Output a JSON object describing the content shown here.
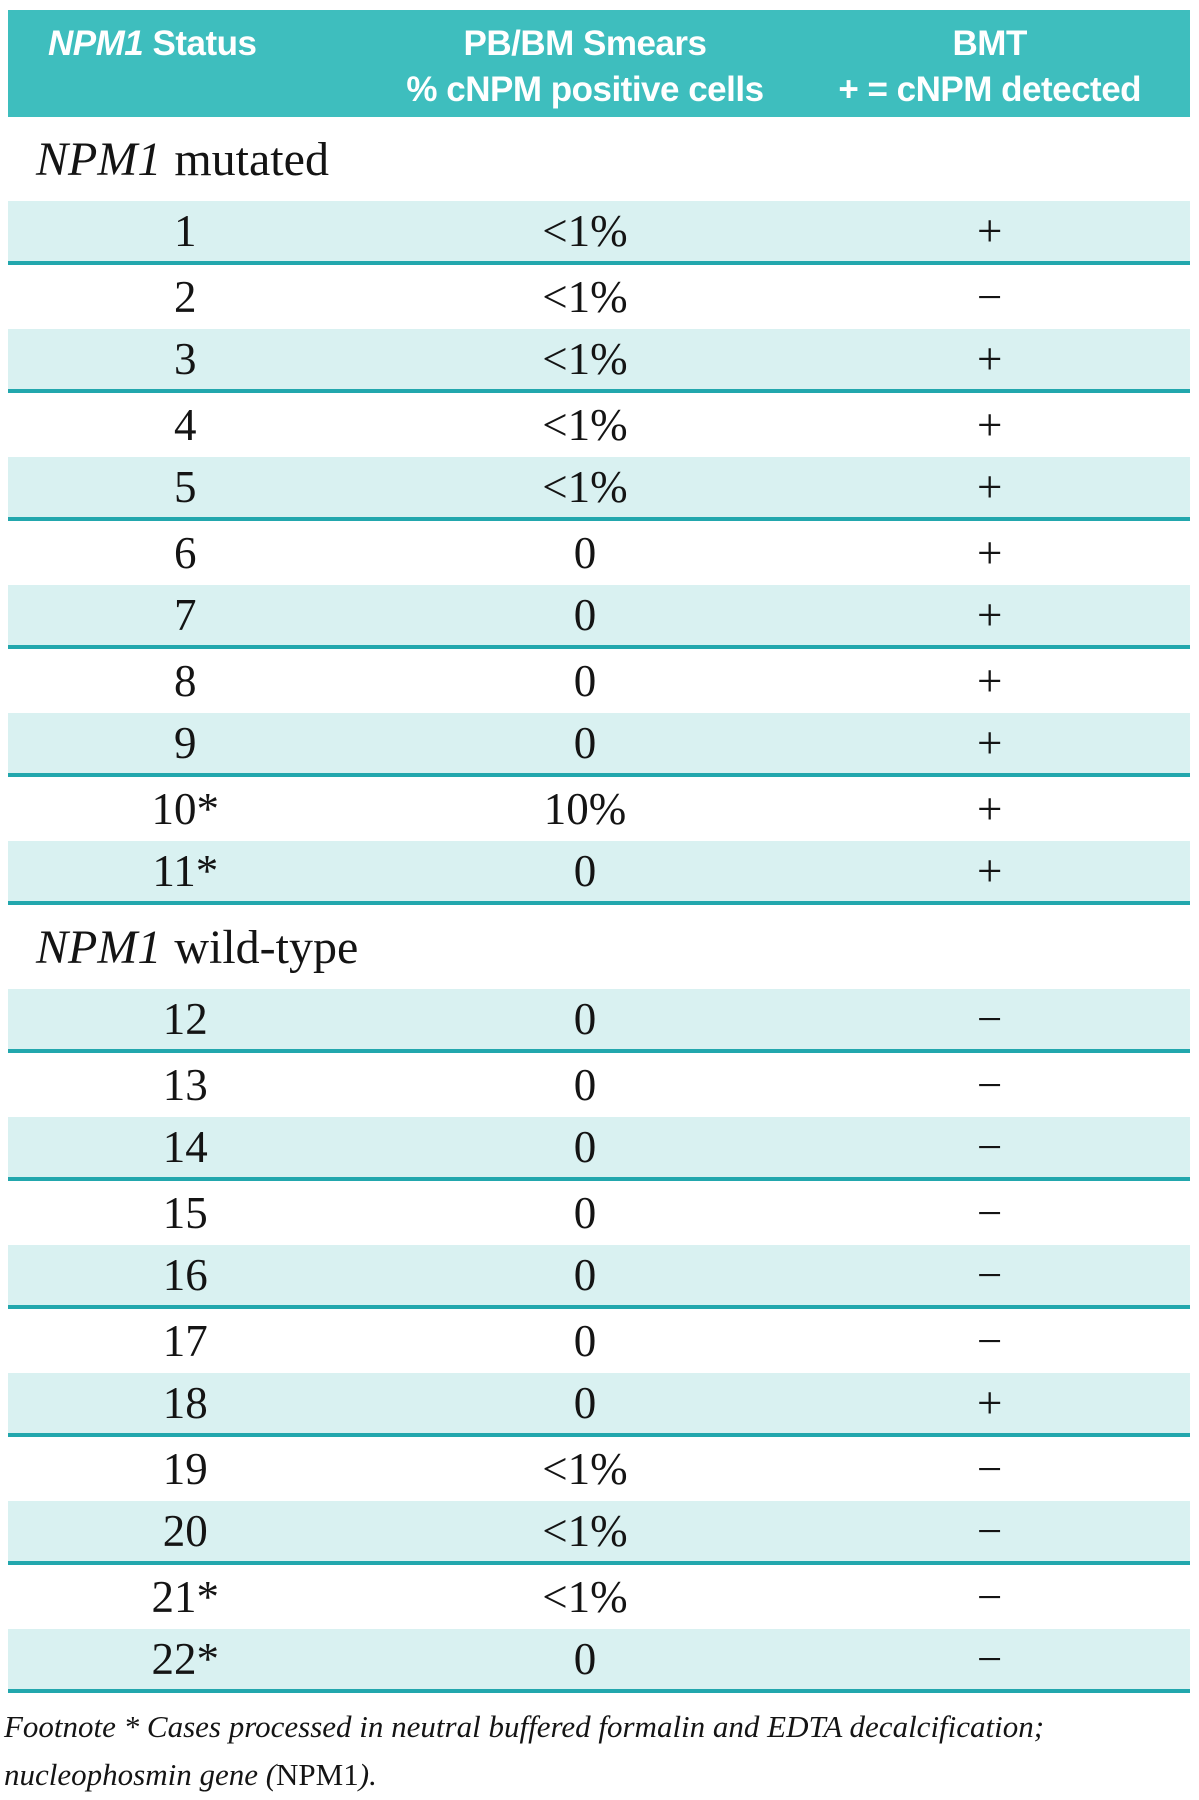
{
  "colors": {
    "header_bg": "#3ebebe",
    "header_text": "#ffffff",
    "row_shade_bg": "#d9f1f1",
    "divider_teal": "#22a7ad",
    "body_text": "#141414"
  },
  "header": {
    "col1_gene": "NPM1",
    "col1_rest": " Status",
    "col2_line1": "PB/BM Smears",
    "col2_line2": "% cNPM positive cells",
    "col3_line1": "BMT",
    "col3_line2": "+ = cNPM detected"
  },
  "sections": [
    {
      "gene": "NPM1",
      "label": "mutated",
      "rows": [
        {
          "id": "1",
          "smear": "<1%",
          "bmt": "+"
        },
        {
          "id": "2",
          "smear": "<1%",
          "bmt": "−"
        },
        {
          "id": "3",
          "smear": "<1%",
          "bmt": "+"
        },
        {
          "id": "4",
          "smear": "<1%",
          "bmt": "+"
        },
        {
          "id": "5",
          "smear": "<1%",
          "bmt": "+"
        },
        {
          "id": "6",
          "smear": "0",
          "bmt": "+"
        },
        {
          "id": "7",
          "smear": "0",
          "bmt": "+"
        },
        {
          "id": "8",
          "smear": "0",
          "bmt": "+"
        },
        {
          "id": "9",
          "smear": "0",
          "bmt": "+"
        },
        {
          "id": "10*",
          "smear": "10%",
          "bmt": "+"
        },
        {
          "id": "11*",
          "smear": "0",
          "bmt": "+"
        }
      ]
    },
    {
      "gene": "NPM1",
      "label": "wild-type",
      "rows": [
        {
          "id": "12",
          "smear": "0",
          "bmt": "−"
        },
        {
          "id": "13",
          "smear": "0",
          "bmt": "−"
        },
        {
          "id": "14",
          "smear": "0",
          "bmt": "−"
        },
        {
          "id": "15",
          "smear": "0",
          "bmt": "−"
        },
        {
          "id": "16",
          "smear": "0",
          "bmt": "−"
        },
        {
          "id": "17",
          "smear": "0",
          "bmt": "−"
        },
        {
          "id": "18",
          "smear": "0",
          "bmt": "+"
        },
        {
          "id": "19",
          "smear": "<1%",
          "bmt": "−"
        },
        {
          "id": "20",
          "smear": "<1%",
          "bmt": "−"
        },
        {
          "id": "21*",
          "smear": "<1%",
          "bmt": "−"
        },
        {
          "id": "22*",
          "smear": "0",
          "bmt": "−"
        }
      ]
    }
  ],
  "footnote": {
    "line1": "Footnote * Cases processed in neutral buffered formalin and EDTA decalcification;",
    "line2_pre": "nucleophosmin gene (",
    "gene": "NPM1",
    "line2_post": ")."
  }
}
